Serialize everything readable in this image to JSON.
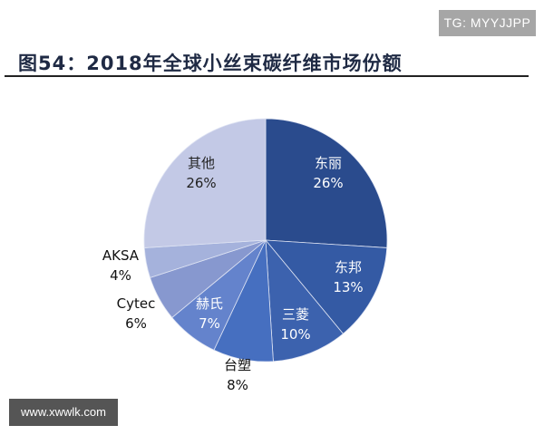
{
  "watermark_top": "TG: MYYJJPP",
  "watermark_bottom": "www.xwwlk.com",
  "chart_data": {
    "type": "pie",
    "title": "图54：2018年全球小丝束碳纤维市场份额",
    "start": "top, clockwise",
    "slices": [
      {
        "label": "东丽",
        "value": 26,
        "text": "26%",
        "color": "#2a4b8d"
      },
      {
        "label": "东邦",
        "value": 13,
        "text": "13%",
        "color": "#345aa4"
      },
      {
        "label": "三菱",
        "value": 10,
        "text": "10%",
        "color": "#3c62ae"
      },
      {
        "label": "台塑",
        "value": 8,
        "text": "8%",
        "color": "#466fc0"
      },
      {
        "label": "赫氏",
        "value": 7,
        "text": "7%",
        "color": "#6483cc"
      },
      {
        "label": "Cytec",
        "value": 6,
        "text": "6%",
        "color": "#8798cf"
      },
      {
        "label": "AKSA",
        "value": 4,
        "text": "4%",
        "color": "#a5b2dc"
      },
      {
        "label": "其他",
        "value": 26,
        "text": "26%",
        "color": "#c3c9e6"
      }
    ]
  }
}
